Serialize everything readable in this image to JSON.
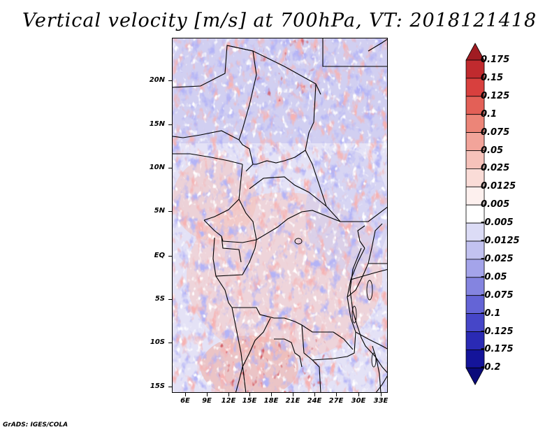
{
  "title": "Vertical velocity [m/s] at 700hPa, VT: 2018121418",
  "footer": "GrADS: IGES/COLA",
  "y_ticks": [
    "20N",
    "15N",
    "10N",
    "5N",
    "EQ",
    "5S",
    "10S",
    "15S"
  ],
  "x_ticks": [
    "6E",
    "9E",
    "12E",
    "15E",
    "18E",
    "21E",
    "24E",
    "27E",
    "30E",
    "33E"
  ],
  "colorbar": {
    "levels": [
      "0.175",
      "0.15",
      "0.125",
      "0.1",
      "0.075",
      "0.05",
      "0.025",
      "0.0125",
      "0.005",
      "-0.005",
      "-0.0125",
      "-0.025",
      "-0.05",
      "-0.075",
      "-0.1",
      "-0.125",
      "-0.175",
      "-0.2"
    ],
    "colors": [
      "#a01c22",
      "#c02a2e",
      "#d8403e",
      "#e36057",
      "#ec8578",
      "#f2a49a",
      "#f6c2ba",
      "#fadcd7",
      "#fdf0ee",
      "#ffffff",
      "#dcdcf6",
      "#c2c2f0",
      "#a4a4ea",
      "#8484e0",
      "#6464d6",
      "#4646c8",
      "#2a2ab4",
      "#14149a",
      "#0a0a7a"
    ]
  }
}
